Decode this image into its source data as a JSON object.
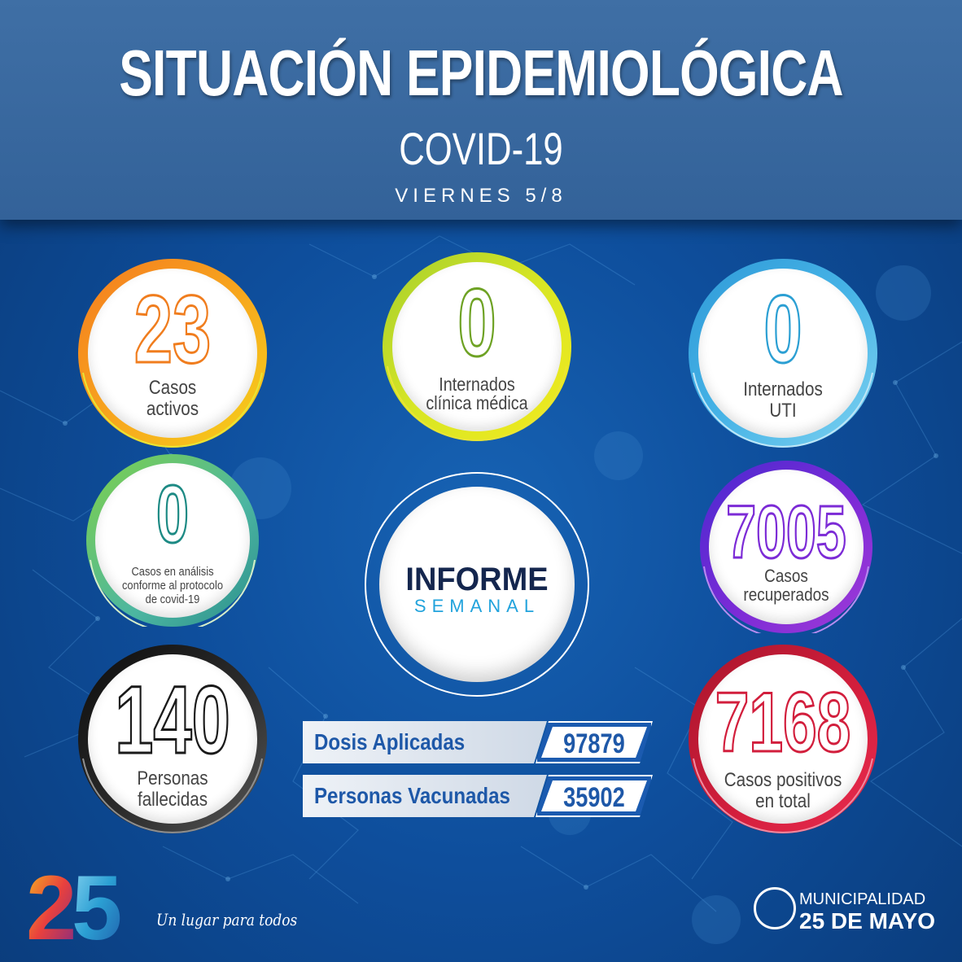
{
  "header": {
    "title": "SITUACIÓN EPIDEMIOLÓGICA",
    "subtitle": "COVID-19",
    "date": "VIERNES 5/8"
  },
  "stats": {
    "casos_activos": {
      "value": "23",
      "label_line1": "Casos",
      "label_line2": "activos",
      "color": "#f07d1e"
    },
    "internados_clinica": {
      "value": "0",
      "label_line1": "Internados",
      "label_line2": "clínica médica",
      "color": "#6ea224"
    },
    "internados_uti": {
      "value": "0",
      "label_line1": "Internados",
      "label_line2": "UTI",
      "color": "#2b9fd3"
    },
    "casos_analisis": {
      "value": "0",
      "label_line1": "Casos en análisis",
      "label_line2": "conforme al protocolo",
      "label_line3": "de covid-19",
      "color": "#1d8a84"
    },
    "casos_recuperados": {
      "value": "7005",
      "label_line1": "Casos",
      "label_line2": "recuperados",
      "color": "#7c2bd6"
    },
    "personas_fallecidas": {
      "value": "140",
      "label_line1": "Personas",
      "label_line2": "fallecidas",
      "color": "#1a1a1a"
    },
    "casos_positivos": {
      "value": "7168",
      "label_line1": "Casos positivos",
      "label_line2": "en total",
      "color": "#d21e3c"
    }
  },
  "informe": {
    "title": "INFORME",
    "subtitle": "SEMANAL"
  },
  "vaccination": {
    "dosis_label": "Dosis Aplicadas",
    "dosis_value": "97879",
    "vacunadas_label": "Personas Vacunadas",
    "vacunadas_value": "35902"
  },
  "footer": {
    "logo_text": "25",
    "slogan": "Un lugar para todos",
    "muni_line1": "MUNICIPALIDAD",
    "muni_line2": "25 DE MAYO"
  }
}
